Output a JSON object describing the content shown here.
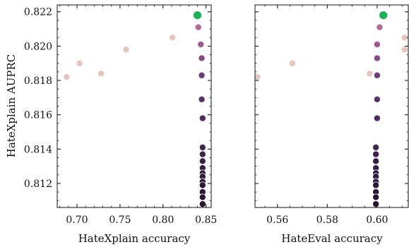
{
  "chart_data": [
    {
      "type": "scatter",
      "xlabel": "HateXplain accuracy",
      "ylabel": "HateXplain AUPRC",
      "xlim": [
        0.677,
        0.856
      ],
      "ylim": [
        0.8106,
        0.8224
      ],
      "xticks": [
        0.7,
        0.75,
        0.8,
        0.85
      ],
      "xtick_labels": [
        "0.70",
        "0.75",
        "0.80",
        "0.85"
      ],
      "yticks": [
        0.812,
        0.814,
        0.816,
        0.818,
        0.82,
        0.822
      ],
      "ytick_labels": [
        "0.812",
        "0.814",
        "0.816",
        "0.818",
        "0.820",
        "0.822"
      ],
      "grid": false,
      "points": [
        {
          "x": 0.688,
          "y": 0.8182,
          "color": "#e8c4bb"
        },
        {
          "x": 0.703,
          "y": 0.819,
          "color": "#e8c4bb"
        },
        {
          "x": 0.728,
          "y": 0.8184,
          "color": "#e8c4bb"
        },
        {
          "x": 0.757,
          "y": 0.8198,
          "color": "#e8c4bb"
        },
        {
          "x": 0.811,
          "y": 0.8205,
          "color": "#e8c4bb"
        },
        {
          "x": 0.841,
          "y": 0.8211,
          "color": "#b4689b"
        },
        {
          "x": 0.844,
          "y": 0.8201,
          "color": "#9e5592"
        },
        {
          "x": 0.845,
          "y": 0.8193,
          "color": "#844a86"
        },
        {
          "x": 0.845,
          "y": 0.8183,
          "color": "#6e3c76"
        },
        {
          "x": 0.845,
          "y": 0.8169,
          "color": "#5c3268"
        },
        {
          "x": 0.846,
          "y": 0.8158,
          "color": "#4e2a5c"
        },
        {
          "x": 0.846,
          "y": 0.8141,
          "color": "#442551"
        },
        {
          "x": 0.846,
          "y": 0.8137,
          "color": "#3f224c"
        },
        {
          "x": 0.846,
          "y": 0.8133,
          "color": "#3a2047"
        },
        {
          "x": 0.846,
          "y": 0.8129,
          "color": "#361e43"
        },
        {
          "x": 0.846,
          "y": 0.8126,
          "color": "#331c40"
        },
        {
          "x": 0.846,
          "y": 0.8124,
          "color": "#301a3d"
        },
        {
          "x": 0.846,
          "y": 0.8121,
          "color": "#2e193a"
        },
        {
          "x": 0.846,
          "y": 0.8119,
          "color": "#2c1838"
        },
        {
          "x": 0.846,
          "y": 0.8115,
          "color": "#2a1736"
        },
        {
          "x": 0.846,
          "y": 0.8112,
          "color": "#291634"
        },
        {
          "x": 0.846,
          "y": 0.8108,
          "color": "#271533"
        },
        {
          "x": 0.84,
          "y": 0.8218,
          "color": "#1bb255",
          "highlight": true
        }
      ]
    },
    {
      "type": "scatter",
      "xlabel": "HateEval accuracy",
      "ylabel": "",
      "xlim": [
        0.551,
        0.6125
      ],
      "ylim": [
        0.8106,
        0.8224
      ],
      "xticks": [
        0.56,
        0.58,
        0.6
      ],
      "xtick_labels": [
        "0.56",
        "0.58",
        "0.60"
      ],
      "yticks": [
        0.812,
        0.814,
        0.816,
        0.818,
        0.82,
        0.822
      ],
      "ytick_labels": [],
      "grid": false,
      "points": [
        {
          "x": 0.552,
          "y": 0.8182,
          "color": "#e8c4bb"
        },
        {
          "x": 0.566,
          "y": 0.819,
          "color": "#e8c4bb"
        },
        {
          "x": 0.597,
          "y": 0.8184,
          "color": "#e8c4bb"
        },
        {
          "x": 0.611,
          "y": 0.8198,
          "color": "#e8c4bb"
        },
        {
          "x": 0.611,
          "y": 0.8205,
          "color": "#e8c4bb"
        },
        {
          "x": 0.601,
          "y": 0.8211,
          "color": "#b4689b"
        },
        {
          "x": 0.6,
          "y": 0.8201,
          "color": "#9e5592"
        },
        {
          "x": 0.6,
          "y": 0.8193,
          "color": "#844a86"
        },
        {
          "x": 0.6,
          "y": 0.8183,
          "color": "#6e3c76"
        },
        {
          "x": 0.6,
          "y": 0.8169,
          "color": "#5c3268"
        },
        {
          "x": 0.6,
          "y": 0.8158,
          "color": "#4e2a5c"
        },
        {
          "x": 0.5995,
          "y": 0.8141,
          "color": "#442551"
        },
        {
          "x": 0.5995,
          "y": 0.8137,
          "color": "#3f224c"
        },
        {
          "x": 0.5995,
          "y": 0.8133,
          "color": "#3a2047"
        },
        {
          "x": 0.5995,
          "y": 0.8129,
          "color": "#361e43"
        },
        {
          "x": 0.5995,
          "y": 0.8126,
          "color": "#331c40"
        },
        {
          "x": 0.5995,
          "y": 0.8124,
          "color": "#301a3d"
        },
        {
          "x": 0.5995,
          "y": 0.8121,
          "color": "#2e193a"
        },
        {
          "x": 0.5995,
          "y": 0.8119,
          "color": "#2c1838"
        },
        {
          "x": 0.5995,
          "y": 0.8115,
          "color": "#2a1736"
        },
        {
          "x": 0.5995,
          "y": 0.8112,
          "color": "#291634"
        },
        {
          "x": 0.5995,
          "y": 0.8108,
          "color": "#271533"
        },
        {
          "x": 0.6025,
          "y": 0.8218,
          "color": "#1bb255",
          "highlight": true
        }
      ]
    }
  ]
}
